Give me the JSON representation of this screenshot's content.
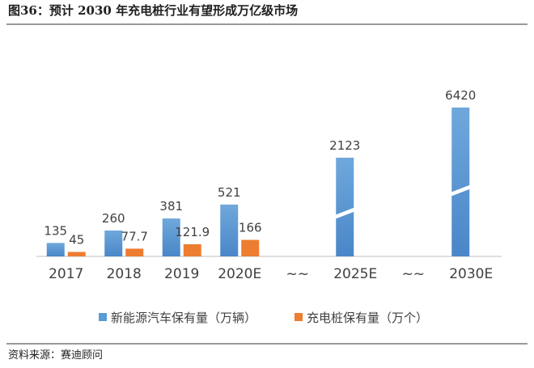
{
  "chart_data": {
    "type": "bar",
    "title": "图36：预计 2030 年充电桩行业有望形成万亿级市场",
    "source": "资料来源：赛迪顾问",
    "categories": [
      "2017",
      "2018",
      "2019",
      "2020E",
      "~~",
      "2025E",
      "~~",
      "2030E"
    ],
    "series": [
      {
        "name": "新能源汽车保有量（万辆）",
        "color": "#5b9bd5",
        "values": [
          135,
          260,
          381,
          521,
          null,
          2123,
          null,
          6420
        ]
      },
      {
        "name": "充电桩保有量（万个）",
        "color": "#ed7d31",
        "values": [
          45,
          77.7,
          121.9,
          166,
          null,
          null,
          null,
          null
        ]
      }
    ]
  }
}
